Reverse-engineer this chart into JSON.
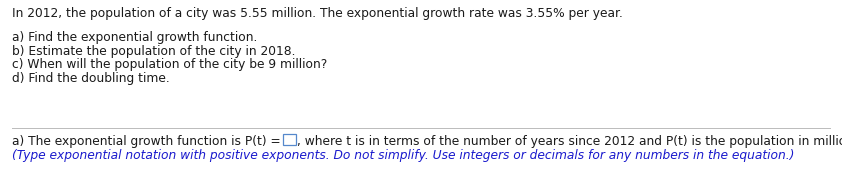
{
  "line1": "In 2012, the population of a city was 5.55 million. The exponential growth rate was 3.55% per year.",
  "questions": [
    "a) Find the exponential growth function.",
    "b) Estimate the population of the city in 2018.",
    "c) When will the population of the city be 9 million?",
    "d) Find the doubling time."
  ],
  "answer_line_before": "a) The exponential growth function is P(t) =",
  "answer_line_after": ", where t is in terms of the number of years since 2012 and P(t) is the population in millions.",
  "answer_note": "(Type exponential notation with positive exponents. Do not simplify. Use integers or decimals for any numbers in the equation.)",
  "text_color_black": "#1a1a1a",
  "text_color_blue": "#1a1acd",
  "background_color": "#ffffff",
  "font_size": 8.8,
  "box_color": "#5588cc",
  "separator_color": "#bbbbbb",
  "fig_width": 8.42,
  "fig_height": 1.85,
  "dpi": 100
}
